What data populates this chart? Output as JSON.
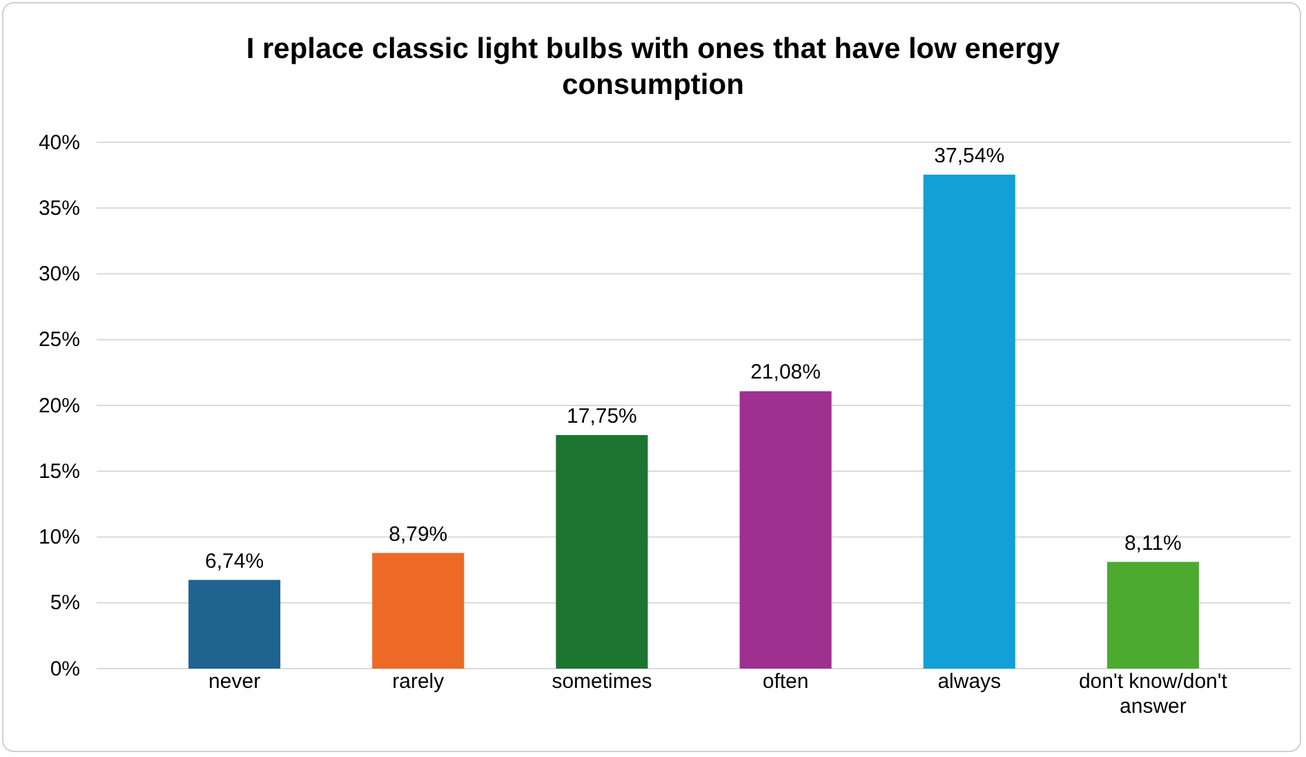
{
  "chart_data": {
    "type": "bar",
    "title": "I replace classic light bulbs with ones that have low energy consumption",
    "categories": [
      "never",
      "rarely",
      "sometimes",
      "often",
      "always",
      "don't know/don't answer"
    ],
    "values": [
      6.74,
      8.79,
      17.75,
      21.08,
      37.54,
      8.11
    ],
    "colors": [
      "#1f6391",
      "#ec6a26",
      "#1b7430",
      "#a0308f",
      "#12a0d7",
      "#4caa30"
    ],
    "value_labels": [
      "6,74%",
      "8,79%",
      "17,75%",
      "21,08%",
      "37,54%",
      "8,11%"
    ],
    "ylim": [
      0,
      40
    ],
    "yticks": [
      {
        "value": 0,
        "label": "0%"
      },
      {
        "value": 5,
        "label": "5%"
      },
      {
        "value": 10,
        "label": "10%"
      },
      {
        "value": 15,
        "label": "15%"
      },
      {
        "value": 20,
        "label": "20%"
      },
      {
        "value": 25,
        "label": "25%"
      },
      {
        "value": 30,
        "label": "30%"
      },
      {
        "value": 35,
        "label": "35%"
      },
      {
        "value": 40,
        "label": "40%"
      }
    ],
    "grid": "y"
  }
}
